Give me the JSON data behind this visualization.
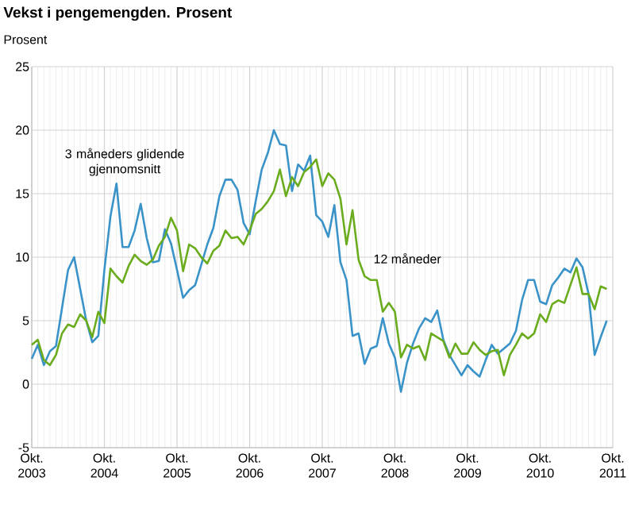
{
  "chart_data": {
    "type": "line",
    "title": "Vekst i pengemengden. Prosent",
    "ylabel": "Prosent",
    "x": [
      "2003-10",
      "2003-11",
      "2003-12",
      "2004-01",
      "2004-02",
      "2004-03",
      "2004-04",
      "2004-05",
      "2004-06",
      "2004-07",
      "2004-08",
      "2004-09",
      "2004-10",
      "2004-11",
      "2004-12",
      "2005-01",
      "2005-02",
      "2005-03",
      "2005-04",
      "2005-05",
      "2005-06",
      "2005-07",
      "2005-08",
      "2005-09",
      "2005-10",
      "2005-11",
      "2005-12",
      "2006-01",
      "2006-02",
      "2006-03",
      "2006-04",
      "2006-05",
      "2006-06",
      "2006-07",
      "2006-08",
      "2006-09",
      "2006-10",
      "2006-11",
      "2006-12",
      "2007-01",
      "2007-02",
      "2007-03",
      "2007-04",
      "2007-05",
      "2007-06",
      "2007-07",
      "2007-08",
      "2007-09",
      "2007-10",
      "2007-11",
      "2007-12",
      "2008-01",
      "2008-02",
      "2008-03",
      "2008-04",
      "2008-05",
      "2008-06",
      "2008-07",
      "2008-08",
      "2008-09",
      "2008-10",
      "2008-11",
      "2008-12",
      "2009-01",
      "2009-02",
      "2009-03",
      "2009-04",
      "2009-05",
      "2009-06",
      "2009-07",
      "2009-08",
      "2009-09",
      "2009-10",
      "2009-11",
      "2009-12",
      "2010-01",
      "2010-02",
      "2010-03",
      "2010-04",
      "2010-05",
      "2010-06",
      "2010-07",
      "2010-08",
      "2010-09",
      "2010-10",
      "2010-11",
      "2010-12",
      "2011-01",
      "2011-02",
      "2011-03",
      "2011-04",
      "2011-05",
      "2011-06",
      "2011-07",
      "2011-08",
      "2011-09"
    ],
    "series": [
      {
        "name": "3 måneders glidende gjennomsnitt",
        "color": "#3a93c8",
        "values": [
          2.0,
          3.1,
          1.5,
          2.6,
          3.0,
          6.0,
          9.0,
          10.0,
          7.5,
          5.0,
          3.3,
          3.8,
          9.0,
          13.2,
          15.8,
          10.8,
          10.8,
          12.1,
          14.2,
          11.5,
          9.6,
          9.7,
          12.2,
          11.1,
          9.0,
          6.8,
          7.4,
          7.8,
          9.4,
          11.0,
          12.3,
          14.8,
          16.1,
          16.1,
          15.3,
          12.7,
          11.8,
          14.4,
          16.9,
          18.2,
          20.0,
          18.9,
          18.8,
          15.2,
          17.3,
          16.8,
          18.0,
          13.3,
          12.8,
          11.6,
          14.1,
          9.6,
          8.2,
          3.8,
          4.0,
          1.6,
          2.8,
          3.0,
          5.2,
          3.2,
          2.1,
          -0.6,
          1.7,
          3.2,
          4.4,
          5.2,
          4.9,
          5.8,
          3.5,
          2.3,
          1.5,
          0.7,
          1.5,
          1.0,
          0.6,
          1.9,
          3.1,
          2.4,
          2.8,
          3.2,
          4.2,
          6.6,
          8.2,
          8.2,
          6.5,
          6.3,
          7.8,
          8.4,
          9.1,
          8.8,
          9.9,
          9.2,
          7.1,
          2.3,
          3.7,
          5.0
        ]
      },
      {
        "name": "12 måneder",
        "color": "#6aac1e",
        "values": [
          3.1,
          3.5,
          1.9,
          1.5,
          2.3,
          4.0,
          4.7,
          4.5,
          5.5,
          5.0,
          3.7,
          5.7,
          4.8,
          9.1,
          8.5,
          8.0,
          9.3,
          10.2,
          9.7,
          9.4,
          9.8,
          10.9,
          11.6,
          13.1,
          12.1,
          8.9,
          11.0,
          10.7,
          10.0,
          9.5,
          10.5,
          10.9,
          12.1,
          11.5,
          11.6,
          11.0,
          12.1,
          13.4,
          13.8,
          14.4,
          15.2,
          16.9,
          14.8,
          16.3,
          15.6,
          16.7,
          17.1,
          17.7,
          15.6,
          16.6,
          16.1,
          14.6,
          11.0,
          13.7,
          9.8,
          8.5,
          8.2,
          8.2,
          5.7,
          6.4,
          5.7,
          2.1,
          3.1,
          2.8,
          3.0,
          1.9,
          4.0,
          3.7,
          3.4,
          2.1,
          3.2,
          2.4,
          2.4,
          3.3,
          2.7,
          2.3,
          2.6,
          2.7,
          0.7,
          2.3,
          3.1,
          4.0,
          3.6,
          4.0,
          5.5,
          4.9,
          6.3,
          6.6,
          6.4,
          7.8,
          9.2,
          7.1,
          7.1,
          5.9,
          7.7,
          7.5
        ]
      }
    ],
    "xlim": [
      "2003-10",
      "2011-10"
    ],
    "xticks": [
      {
        "value": "2003-10",
        "label": "Okt. 2003"
      },
      {
        "value": "2004-10",
        "label": "Okt. 2004"
      },
      {
        "value": "2005-10",
        "label": "Okt. 2005"
      },
      {
        "value": "2006-10",
        "label": "Okt. 2006"
      },
      {
        "value": "2007-10",
        "label": "Okt. 2007"
      },
      {
        "value": "2008-10",
        "label": "Okt. 2008"
      },
      {
        "value": "2009-10",
        "label": "Okt. 2009"
      },
      {
        "value": "2010-10",
        "label": "Okt. 2010"
      },
      {
        "value": "2011-10",
        "label": "Okt. 2011"
      }
    ],
    "ylim": [
      -5,
      25
    ],
    "yticks": [
      -5,
      0,
      5,
      10,
      15,
      20,
      25
    ],
    "grid": true,
    "marker": "none",
    "line_style": "solid"
  }
}
